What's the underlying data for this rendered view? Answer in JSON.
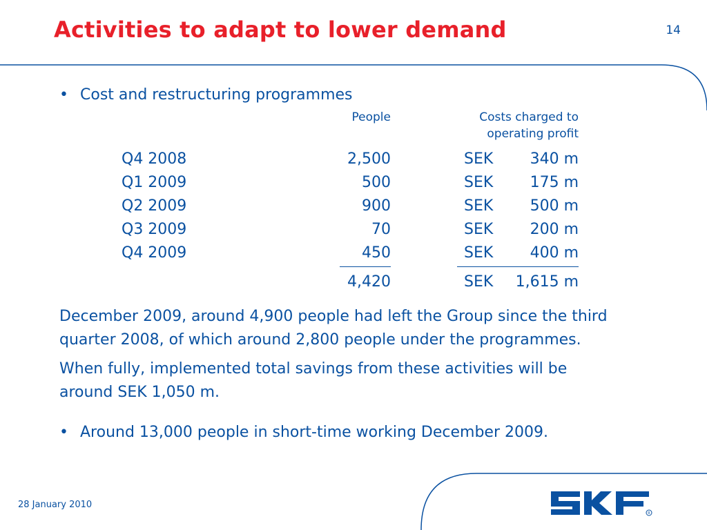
{
  "header": {
    "title": "Activities to adapt to lower demand",
    "page_number": "14"
  },
  "bullets": {
    "first": "Cost and restructuring programmes",
    "second": "Around 13,000 people in short-time working December 2009."
  },
  "table": {
    "col_people": "People",
    "col_costs_line1": "Costs charged to",
    "col_costs_line2": "operating profit",
    "rows": [
      {
        "quarter": "Q4 2008",
        "people": "2,500",
        "currency": "SEK",
        "amount": "340 m"
      },
      {
        "quarter": "Q1 2009",
        "people": "500",
        "currency": "SEK",
        "amount": "175 m"
      },
      {
        "quarter": "Q2 2009",
        "people": "900",
        "currency": "SEK",
        "amount": "500 m"
      },
      {
        "quarter": "Q3 2009",
        "people": "70",
        "currency": "SEK",
        "amount": "200 m"
      },
      {
        "quarter": "Q4 2009",
        "people": "450",
        "currency": "SEK",
        "amount": "400 m"
      }
    ],
    "total": {
      "people": "4,420",
      "currency": "SEK",
      "amount": "1,615 m"
    }
  },
  "paragraphs": {
    "p1_line1": "December 2009, around 4,900 people had left the Group since the third",
    "p1_line2": "quarter 2008, of which around 2,800 people under the programmes.",
    "p2_line1": "When fully, implemented total savings from these activities will be",
    "p2_line2": "around SEK 1,050 m."
  },
  "footer": {
    "date": "28 January 2010",
    "logo_text": "SKF"
  },
  "colors": {
    "title": "#e8202a",
    "text": "#0a51a1",
    "accent_lines": "#0a51a1"
  }
}
